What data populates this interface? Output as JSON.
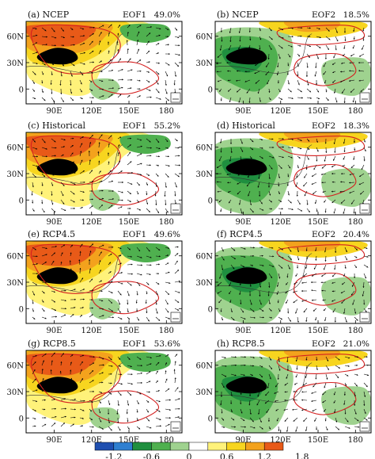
{
  "panels": [
    {
      "label": "(a) NCEP",
      "eof": "EOF1",
      "pct": "49.0%",
      "pattern": 1
    },
    {
      "label": "(b) NCEP",
      "eof": "EOF2",
      "pct": "18.5%",
      "pattern": 2
    },
    {
      "label": "(c) Historical",
      "eof": "EOF1",
      "pct": "55.2%",
      "pattern": 1
    },
    {
      "label": "(d) Historical",
      "eof": "EOF2",
      "pct": "18.3%",
      "pattern": 2
    },
    {
      "label": "(e) RCP4.5",
      "eof": "EOF1",
      "pct": "49.6%",
      "pattern": 1
    },
    {
      "label": "(f) RCP4.5",
      "eof": "EOF2",
      "pct": "20.4%",
      "pattern": 2
    },
    {
      "label": "(g) RCP8.5",
      "eof": "EOF1",
      "pct": "53.6%",
      "pattern": 1
    },
    {
      "label": "(h) RCP8.5",
      "eof": "EOF2",
      "pct": "21.0%",
      "pattern": 2
    }
  ],
  "lat_ticks": [
    "60N",
    "30N",
    "0"
  ],
  "lon_ticks": [
    "90E",
    "120E",
    "150E",
    "180"
  ],
  "colorbar": {
    "ticks": [
      "-1.2",
      "-0.6",
      "0",
      "0.6",
      "1.2",
      "1.8"
    ],
    "colors": [
      "#1f4fb0",
      "#2f7fd0",
      "#1f8f3f",
      "#4fb04f",
      "#9fd28f",
      "#ffffff",
      "#fff27a",
      "#f7d51f",
      "#f3a21d",
      "#e85a18"
    ]
  },
  "colors": {
    "contour": "#d42020",
    "vector": "#000000",
    "plateau": "#000000"
  }
}
